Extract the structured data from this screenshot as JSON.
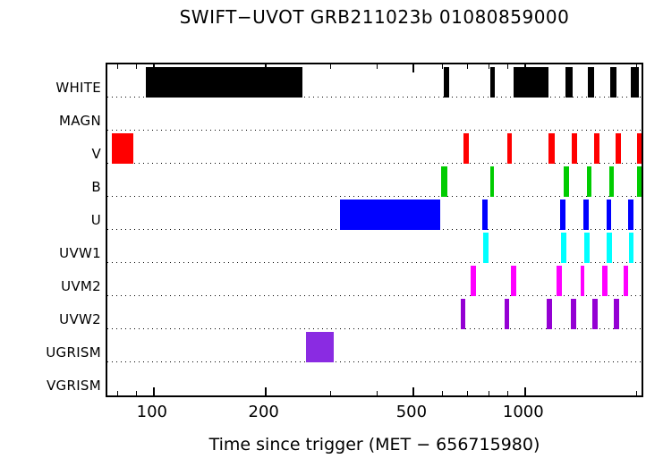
{
  "title": "SWIFT−UVOT GRB211023b 01080859000",
  "xlabel": "Time since trigger (MET − 656715980)",
  "colors": {
    "frame": "#000000",
    "background": "#ffffff"
  },
  "chart_data": {
    "type": "bar",
    "subtype": "observation-timeline",
    "title": "SWIFT−UVOT GRB211023b 01080859000",
    "xlabel": "Time since trigger (MET − 656715980)",
    "x_scale": "log",
    "x_range": [
      75,
      2060
    ],
    "x_major_ticks": [
      100,
      200,
      500,
      1000
    ],
    "x_minor_ticks": [
      80,
      90,
      300,
      400,
      600,
      700,
      800,
      900,
      2000
    ],
    "grid": "dotted-horizontal-per-row",
    "legend": "none",
    "rows": [
      {
        "label": "WHITE",
        "color": "#000000",
        "intervals": [
          [
            95,
            252
          ],
          [
            605,
            625
          ],
          [
            808,
            830
          ],
          [
            930,
            1155
          ],
          [
            1285,
            1345
          ],
          [
            1475,
            1535
          ],
          [
            1700,
            1765
          ],
          [
            1930,
            2030
          ]
        ]
      },
      {
        "label": "MAGN",
        "color": "#000000",
        "intervals": []
      },
      {
        "label": "V",
        "color": "#ff0000",
        "intervals": [
          [
            77,
            88
          ],
          [
            682,
            705
          ],
          [
            894,
            924
          ],
          [
            1155,
            1200
          ],
          [
            1337,
            1382
          ],
          [
            1535,
            1590
          ],
          [
            1757,
            1817
          ],
          [
            2005,
            2060
          ]
        ]
      },
      {
        "label": "B",
        "color": "#00cc00",
        "intervals": [
          [
            595,
            618
          ],
          [
            807,
            827
          ],
          [
            1270,
            1313
          ],
          [
            1465,
            1510
          ],
          [
            1685,
            1735
          ],
          [
            2005,
            2060
          ]
        ]
      },
      {
        "label": "U",
        "color": "#0000ff",
        "intervals": [
          [
            317,
            590
          ],
          [
            766,
            792
          ],
          [
            1240,
            1285
          ],
          [
            1437,
            1487
          ],
          [
            1655,
            1710
          ],
          [
            1900,
            1960
          ]
        ]
      },
      {
        "label": "UVW1",
        "color": "#00ffff",
        "intervals": [
          [
            770,
            796
          ],
          [
            1247,
            1292
          ],
          [
            1445,
            1493
          ],
          [
            1663,
            1718
          ],
          [
            1905,
            1965
          ]
        ]
      },
      {
        "label": "UVM2",
        "color": "#ff00ff",
        "intervals": [
          [
            714,
            738
          ],
          [
            917,
            948
          ],
          [
            1213,
            1255
          ],
          [
            1410,
            1447
          ],
          [
            1612,
            1665
          ],
          [
            1843,
            1900
          ]
        ]
      },
      {
        "label": "UVW2",
        "color": "#9400d3",
        "intervals": [
          [
            672,
            690
          ],
          [
            880,
            906
          ],
          [
            1142,
            1183
          ],
          [
            1325,
            1370
          ],
          [
            1518,
            1568
          ],
          [
            1737,
            1793
          ]
        ]
      },
      {
        "label": "UGRISM",
        "color": "#8a2be2",
        "intervals": [
          [
            257,
            306
          ]
        ]
      },
      {
        "label": "VGRISM",
        "color": "#000000",
        "intervals": []
      }
    ]
  }
}
